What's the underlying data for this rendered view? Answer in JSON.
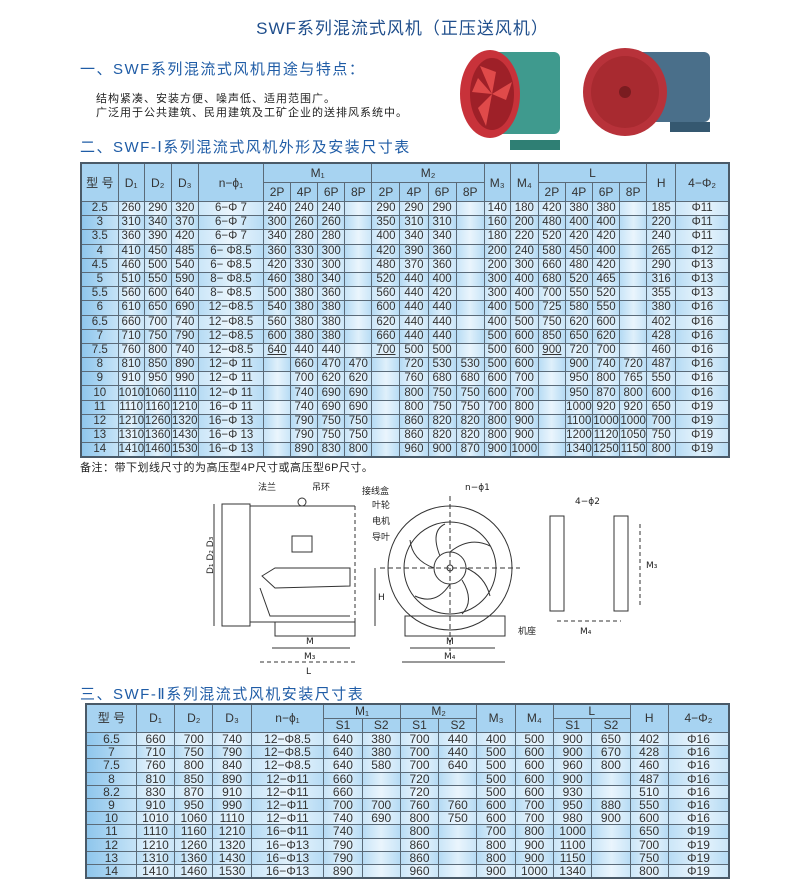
{
  "title": "SWF系列混流式风机（正压送风机）",
  "section1": {
    "heading": "一、SWF系列混流式风机用途与特点：",
    "lines": [
      "结构紧凑、安装方便、噪声低、适用范围广。",
      "广泛用于公共建筑、民用建筑及工矿企业的送排风系统中。"
    ]
  },
  "section2": {
    "heading": "二、SWF-Ⅰ系列混流式风机外形及安装尺寸表"
  },
  "section3": {
    "heading": "三、SWF-Ⅱ系列混流式风机安装尺寸表"
  },
  "colors": {
    "heading": "#1f5ca6",
    "header_bg": "#a7d3f1",
    "row_light": "#cbe6f8",
    "row_dark": "#b6dbf4",
    "fan_red": "#c8323a",
    "fan_teal": "#3f9a8e"
  },
  "table1": {
    "headers": {
      "type": "型 号",
      "d1": "D₁",
      "d2": "D₂",
      "d3": "D₃",
      "nphi": "n−ϕ₁",
      "m1": "M₁",
      "m2": "M₂",
      "m3": "M₃",
      "m4": "M₄",
      "l": "L",
      "h": "H",
      "phi2": "4−Φ₂",
      "poles": [
        "2P",
        "4P",
        "6P",
        "8P"
      ]
    },
    "underlined": [
      [
        10,
        5
      ],
      [
        10,
        9
      ],
      [
        10,
        15
      ]
    ],
    "rows": [
      [
        "2.5",
        "260",
        "290",
        "320",
        "6−Φ 7",
        "240",
        "240",
        "240",
        "",
        "290",
        "290",
        "290",
        "",
        "140",
        "180",
        "420",
        "380",
        "380",
        "",
        "185",
        "Φ11"
      ],
      [
        "3",
        "310",
        "340",
        "370",
        "6−Φ 7",
        "300",
        "260",
        "260",
        "",
        "350",
        "310",
        "310",
        "",
        "160",
        "200",
        "480",
        "400",
        "400",
        "",
        "220",
        "Φ11"
      ],
      [
        "3.5",
        "360",
        "390",
        "420",
        "6−Φ 7",
        "340",
        "280",
        "280",
        "",
        "400",
        "340",
        "340",
        "",
        "180",
        "220",
        "520",
        "420",
        "420",
        "",
        "240",
        "Φ11"
      ],
      [
        "4",
        "410",
        "450",
        "485",
        "6− Φ8.5",
        "360",
        "330",
        "300",
        "",
        "420",
        "390",
        "360",
        "",
        "200",
        "240",
        "580",
        "450",
        "400",
        "",
        "265",
        "Φ12"
      ],
      [
        "4.5",
        "460",
        "500",
        "540",
        "6− Φ8.5",
        "420",
        "330",
        "300",
        "",
        "480",
        "370",
        "360",
        "",
        "200",
        "300",
        "660",
        "480",
        "420",
        "",
        "290",
        "Φ13"
      ],
      [
        "5",
        "510",
        "550",
        "590",
        "8− Φ8.5",
        "460",
        "380",
        "340",
        "",
        "520",
        "440",
        "400",
        "",
        "300",
        "400",
        "680",
        "520",
        "465",
        "",
        "316",
        "Φ13"
      ],
      [
        "5.5",
        "560",
        "600",
        "640",
        "8− Φ8.5",
        "500",
        "380",
        "360",
        "",
        "560",
        "440",
        "420",
        "",
        "300",
        "400",
        "700",
        "550",
        "520",
        "",
        "355",
        "Φ13"
      ],
      [
        "6",
        "610",
        "650",
        "690",
        "12−Φ8.5",
        "540",
        "380",
        "380",
        "",
        "600",
        "440",
        "440",
        "",
        "400",
        "500",
        "725",
        "580",
        "550",
        "",
        "380",
        "Φ16"
      ],
      [
        "6.5",
        "660",
        "700",
        "740",
        "12−Φ8.5",
        "560",
        "380",
        "380",
        "",
        "620",
        "440",
        "440",
        "",
        "400",
        "500",
        "750",
        "620",
        "600",
        "",
        "402",
        "Φ16"
      ],
      [
        "7",
        "710",
        "750",
        "790",
        "12−Φ8.5",
        "600",
        "380",
        "380",
        "",
        "660",
        "440",
        "440",
        "",
        "500",
        "600",
        "850",
        "650",
        "620",
        "",
        "428",
        "Φ16"
      ],
      [
        "7.5",
        "760",
        "800",
        "740",
        "12−Φ8.5",
        "640",
        "440",
        "440",
        "",
        "700",
        "500",
        "500",
        "",
        "500",
        "600",
        "900",
        "720",
        "700",
        "",
        "460",
        "Φ16"
      ],
      [
        "8",
        "810",
        "850",
        "890",
        "12−Φ 11",
        "",
        "660",
        "470",
        "470",
        "",
        "720",
        "530",
        "530",
        "500",
        "600",
        "",
        "900",
        "740",
        "720",
        "487",
        "Φ16"
      ],
      [
        "9",
        "910",
        "950",
        "990",
        "12−Φ 11",
        "",
        "700",
        "620",
        "620",
        "",
        "760",
        "680",
        "680",
        "600",
        "700",
        "",
        "950",
        "800",
        "765",
        "550",
        "Φ16"
      ],
      [
        "10",
        "1010",
        "1060",
        "1110",
        "12−Φ 11",
        "",
        "740",
        "690",
        "690",
        "",
        "800",
        "750",
        "750",
        "600",
        "700",
        "",
        "950",
        "870",
        "800",
        "600",
        "Φ16"
      ],
      [
        "11",
        "1110",
        "1160",
        "1210",
        "16−Φ 11",
        "",
        "740",
        "690",
        "690",
        "",
        "800",
        "750",
        "750",
        "700",
        "800",
        "",
        "1000",
        "920",
        "920",
        "650",
        "Φ19"
      ],
      [
        "12",
        "1210",
        "1260",
        "1320",
        "16−Φ 13",
        "",
        "790",
        "750",
        "750",
        "",
        "860",
        "820",
        "820",
        "800",
        "900",
        "",
        "1100",
        "1000",
        "1000",
        "700",
        "Φ19"
      ],
      [
        "13",
        "1310",
        "1360",
        "1430",
        "16−Φ 13",
        "",
        "790",
        "750",
        "750",
        "",
        "860",
        "820",
        "820",
        "800",
        "900",
        "",
        "1200",
        "1120",
        "1050",
        "750",
        "Φ19"
      ],
      [
        "14",
        "1410",
        "1460",
        "1530",
        "16−Φ 13",
        "",
        "890",
        "830",
        "800",
        "",
        "960",
        "900",
        "870",
        "900",
        "1000",
        "",
        "1340",
        "1250",
        "1150",
        "800",
        "Φ19"
      ]
    ]
  },
  "note": "备注：带下划线尺寸的为高压型4P尺寸或高压型6P尺寸。",
  "diagram": {
    "labels": {
      "flange": "法兰",
      "lifting_ring": "吊环",
      "junction_box": "接线盒",
      "impeller": "叶轮",
      "motor": "电机",
      "guide_vane": "导叶",
      "holes": "n−ϕ1",
      "base": "机座",
      "d_labels": "D₁ D₂ D₃",
      "h": "H",
      "m": "M",
      "m3": "M₃",
      "m4": "M₄",
      "l": "L",
      "holes2": "4−ϕ2"
    }
  },
  "table2": {
    "headers": {
      "type": "型 号",
      "d1": "D₁",
      "d2": "D₂",
      "d3": "D₃",
      "nphi": "n−ϕ₁",
      "m1": "M₁",
      "m2": "M₂",
      "m3": "M₃",
      "m4": "M₄",
      "l": "L",
      "h": "H",
      "phi2": "4−Φ₂",
      "sub": [
        "S1",
        "S2"
      ]
    },
    "rows": [
      [
        "6.5",
        "660",
        "700",
        "740",
        "12−Φ8.5",
        "640",
        "380",
        "700",
        "440",
        "400",
        "500",
        "900",
        "650",
        "402",
        "Φ16"
      ],
      [
        "7",
        "710",
        "750",
        "790",
        "12−Φ8.5",
        "640",
        "380",
        "700",
        "440",
        "500",
        "600",
        "900",
        "670",
        "428",
        "Φ16"
      ],
      [
        "7.5",
        "760",
        "800",
        "840",
        "12−Φ8.5",
        "640",
        "580",
        "700",
        "640",
        "500",
        "600",
        "960",
        "800",
        "460",
        "Φ16"
      ],
      [
        "8",
        "810",
        "850",
        "890",
        "12−Φ11",
        "660",
        "",
        "720",
        "",
        "500",
        "600",
        "900",
        "",
        "487",
        "Φ16"
      ],
      [
        "8.2",
        "830",
        "870",
        "910",
        "12−Φ11",
        "660",
        "",
        "720",
        "",
        "500",
        "600",
        "930",
        "",
        "510",
        "Φ16"
      ],
      [
        "9",
        "910",
        "950",
        "990",
        "12−Φ11",
        "700",
        "700",
        "760",
        "760",
        "600",
        "700",
        "950",
        "880",
        "550",
        "Φ16"
      ],
      [
        "10",
        "1010",
        "1060",
        "1110",
        "12−Φ11",
        "740",
        "690",
        "800",
        "750",
        "600",
        "700",
        "980",
        "900",
        "600",
        "Φ16"
      ],
      [
        "11",
        "1110",
        "1160",
        "1210",
        "16−Φ11",
        "740",
        "",
        "800",
        "",
        "700",
        "800",
        "1000",
        "",
        "650",
        "Φ19"
      ],
      [
        "12",
        "1210",
        "1260",
        "1320",
        "16−Φ13",
        "790",
        "",
        "860",
        "",
        "800",
        "900",
        "1100",
        "",
        "700",
        "Φ19"
      ],
      [
        "13",
        "1310",
        "1360",
        "1430",
        "16−Φ13",
        "790",
        "",
        "860",
        "",
        "800",
        "900",
        "1150",
        "",
        "750",
        "Φ19"
      ],
      [
        "14",
        "1410",
        "1460",
        "1530",
        "16−Φ13",
        "890",
        "",
        "960",
        "",
        "900",
        "1000",
        "1340",
        "",
        "800",
        "Φ19"
      ]
    ]
  }
}
